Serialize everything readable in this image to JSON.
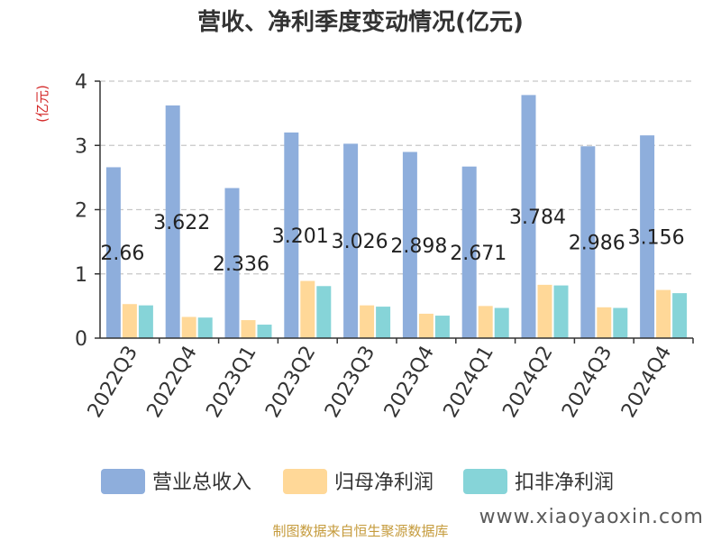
{
  "chart_data": {
    "type": "bar",
    "title": "营收、净利季度变动情况(亿元)",
    "ylabel": "(亿元)",
    "ylim": [
      0,
      4
    ],
    "yticks": [
      "0",
      "1",
      "2",
      "3",
      "4"
    ],
    "grid": true,
    "legend_position": "bottom",
    "categories": [
      "2022Q3",
      "2022Q4",
      "2023Q1",
      "2023Q2",
      "2023Q3",
      "2023Q4",
      "2024Q1",
      "2024Q2",
      "2024Q3",
      "2024Q4"
    ],
    "series": [
      {
        "name": "营业总收入",
        "color": "#8eaedc",
        "values": [
          2.66,
          3.622,
          2.336,
          3.201,
          3.026,
          2.898,
          2.671,
          3.784,
          2.986,
          3.156
        ],
        "labels": [
          "2.66",
          "3.622",
          "2.336",
          "3.201",
          "3.026",
          "2.898",
          "2.671",
          "3.784",
          "2.986",
          "3.156"
        ]
      },
      {
        "name": "归母净利润",
        "color": "#ffd898",
        "values": [
          0.53,
          0.33,
          0.28,
          0.89,
          0.51,
          0.38,
          0.5,
          0.83,
          0.48,
          0.75
        ]
      },
      {
        "name": "扣非净利润",
        "color": "#86d4d8",
        "values": [
          0.51,
          0.32,
          0.21,
          0.81,
          0.49,
          0.35,
          0.47,
          0.82,
          0.47,
          0.7
        ]
      }
    ]
  },
  "footer": {
    "source": "制图数据来自恒生聚源数据库",
    "watermark": "www.xiaoyaoxin.com"
  }
}
